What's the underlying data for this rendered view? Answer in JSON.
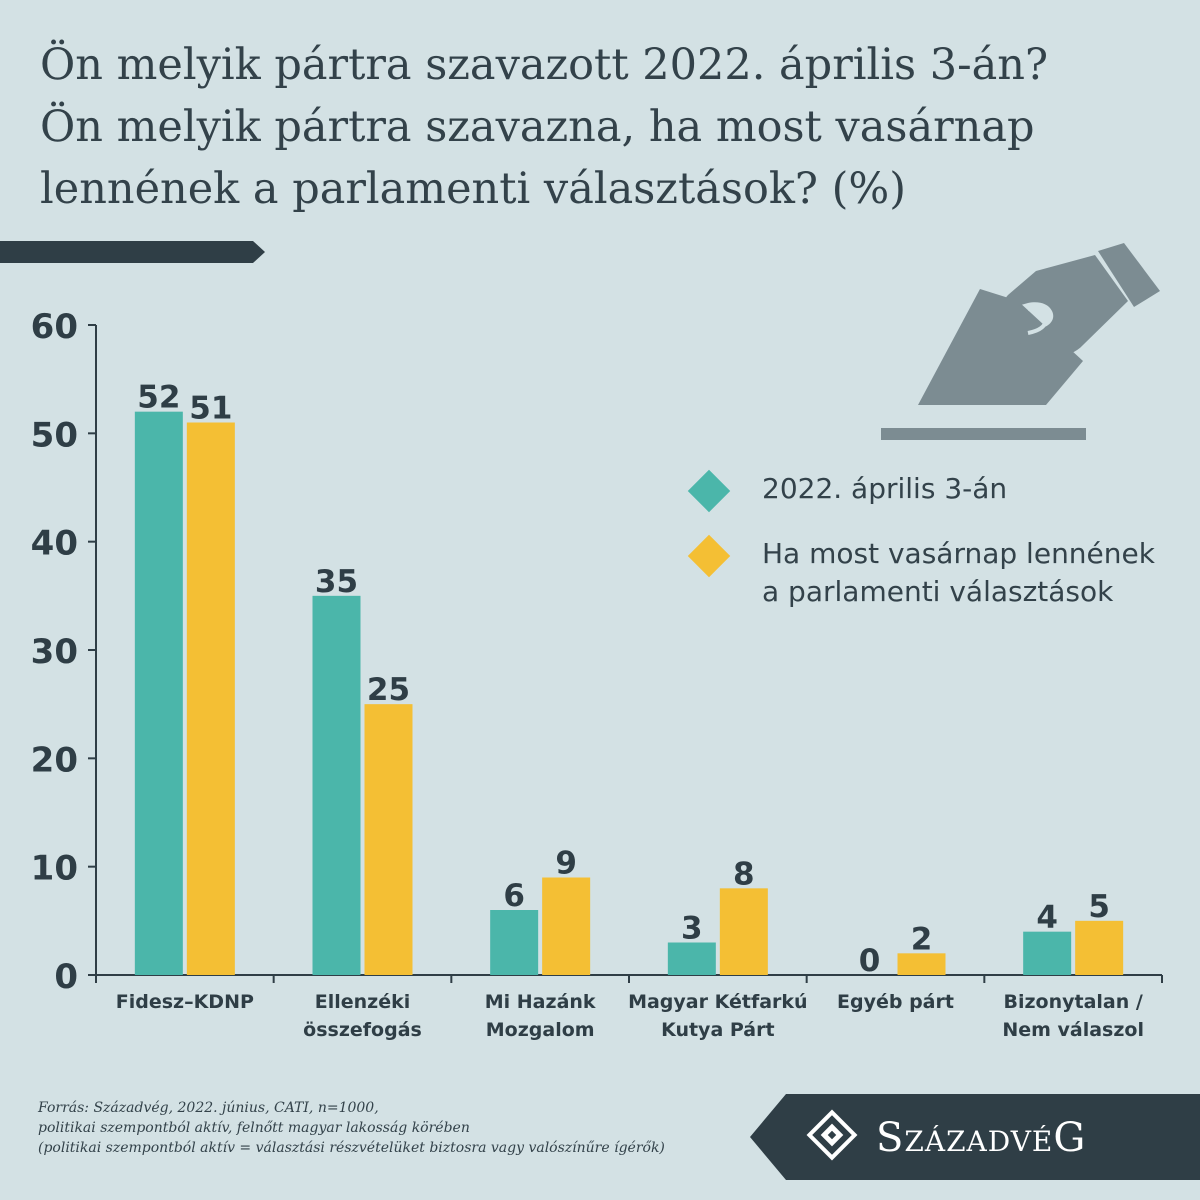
{
  "title_lines": [
    "Ön melyik pártra szavazott 2022. április 3-án?",
    "Ön melyik pártra szavazna, ha most vasárnap",
    "lennének a parlamenti választások? (%)"
  ],
  "legend": [
    {
      "label": "2022. április 3-án",
      "color": "#4bb6aa"
    },
    {
      "label": "Ha most vasárnap lennének\na parlamenti választások",
      "color": "#f4bf34"
    }
  ],
  "source_lines": [
    "Forrás: Századvég, 2022. június, CATI, n=1000,",
    "politikai szempontból aktív, felnőtt magyar lakosság körében",
    "(politikai szempontból aktív = választási részvételüket biztosra vagy valószínűre ígérők)"
  ],
  "brand": "SzázadvéG",
  "icons": [
    "ballot-box-hand-icon",
    "szazadveg-logo-icon"
  ],
  "chart_data": {
    "type": "bar",
    "categories": [
      [
        "Fidesz–KDNP"
      ],
      [
        "Ellenzéki",
        "összefogás"
      ],
      [
        "Mi Hazánk",
        "Mozgalom"
      ],
      [
        "Magyar Kétfarkú",
        "Kutya Párt"
      ],
      [
        "Egyéb párt"
      ],
      [
        "Bizonytalan /",
        "Nem válaszol"
      ]
    ],
    "series": [
      {
        "name": "2022. április 3-án",
        "values": [
          52,
          35,
          6,
          3,
          0,
          4
        ],
        "color": "#4bb6aa"
      },
      {
        "name": "Ha most vasárnap lennének a parlamenti választások",
        "values": [
          51,
          25,
          9,
          8,
          2,
          5
        ],
        "color": "#f4bf34"
      }
    ],
    "ylim": [
      0,
      60
    ],
    "yticks": [
      0,
      10,
      20,
      30,
      40,
      50,
      60
    ],
    "xlabel": "",
    "ylabel": "",
    "grid": false,
    "legend_position": "right"
  }
}
